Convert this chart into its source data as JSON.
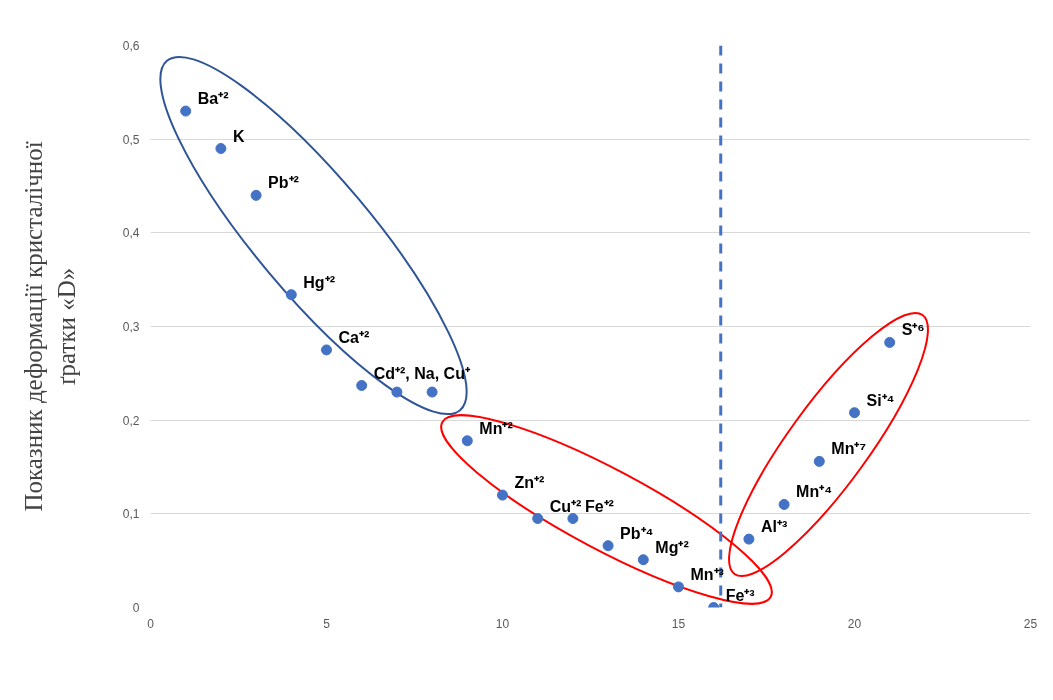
{
  "chart_data": {
    "type": "scatter",
    "ylabel": "Показник деформації кристалічної\nґратки «D»",
    "x": [
      1,
      2,
      3,
      4,
      5,
      6,
      7,
      8,
      9,
      10,
      11,
      12,
      13,
      14,
      15,
      16,
      17,
      18,
      19,
      20,
      21
    ],
    "series": [
      {
        "color": "#4472c4",
        "values": [
          0.53,
          0.49,
          0.44,
          0.334,
          0.275,
          0.237,
          0.23,
          0.23,
          0.178,
          0.12,
          0.095,
          0.095,
          0.066,
          0.051,
          0.022,
          0,
          0.073,
          0.11,
          0.156,
          0.208,
          0.283
        ]
      }
    ],
    "marker": "circle",
    "grid": "y",
    "xlim": [
      0,
      25
    ],
    "ylim": [
      0,
      0.6
    ],
    "xticks": [
      0,
      5,
      10,
      15,
      20,
      25
    ],
    "yticks": [
      {
        "value": 0,
        "label": "0"
      },
      {
        "value": 0.1,
        "label": "0,1"
      },
      {
        "value": 0.2,
        "label": "0,2"
      },
      {
        "value": 0.3,
        "label": "0,3"
      },
      {
        "value": 0.4,
        "label": "0,4"
      },
      {
        "value": 0.5,
        "label": "0,5"
      },
      {
        "value": 0.6,
        "label": "0,6"
      }
    ],
    "ref_lines": [
      {
        "axis": "x",
        "value": 16.2,
        "color": "#4472c4",
        "line_style": "dashed"
      }
    ],
    "annotations": [
      {
        "text": "Ba⁺²",
        "x": 1,
        "y": 0.53
      },
      {
        "text": "K",
        "x": 2,
        "y": 0.49
      },
      {
        "text": "Pb⁺²",
        "x": 3,
        "y": 0.44
      },
      {
        "text": "Hg⁺²",
        "x": 4,
        "y": 0.334
      },
      {
        "text": "Ca⁺²",
        "x": 5,
        "y": 0.275
      },
      {
        "text": "Cd⁺², Na, Cu⁺",
        "x": 6,
        "y": 0.237
      },
      {
        "text": "Mn⁺²",
        "x": 9,
        "y": 0.178
      },
      {
        "text": "Zn⁺²",
        "x": 10,
        "y": 0.12
      },
      {
        "text": "Cu⁺²",
        "x": 11,
        "y": 0.095
      },
      {
        "text": "Fe⁺²",
        "x": 12,
        "y": 0.095
      },
      {
        "text": "Pb⁺⁴",
        "x": 13,
        "y": 0.066
      },
      {
        "text": "Mg⁺²",
        "x": 14,
        "y": 0.051
      },
      {
        "text": "Mn⁺³",
        "x": 15,
        "y": 0.022
      },
      {
        "text": "Fe⁺³",
        "x": 16,
        "y": 0
      },
      {
        "text": "Al⁺³",
        "x": 17,
        "y": 0.073
      },
      {
        "text": "Mn⁺⁴",
        "x": 18,
        "y": 0.11
      },
      {
        "text": "Mn⁺⁷",
        "x": 19,
        "y": 0.156
      },
      {
        "text": "Si⁺⁴",
        "x": 20,
        "y": 0.208
      },
      {
        "text": "S⁺⁶",
        "x": 21,
        "y": 0.283
      }
    ]
  }
}
